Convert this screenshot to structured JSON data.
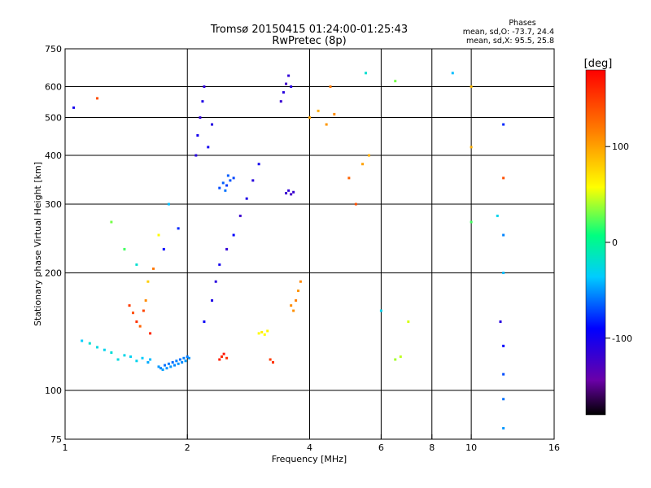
{
  "chart_data": {
    "type": "scatter",
    "title": "Tromsø 20150415 01:24:00-01:25:43",
    "subtitle": "RwPretec (8p)",
    "xlabel": "Frequency [MHz]",
    "ylabel": "Stationary phase Virtual Height [km]",
    "xscale": "log",
    "yscale": "log",
    "xlim": [
      1,
      16
    ],
    "ylim": [
      75,
      750
    ],
    "x_ticks": [
      1,
      2,
      4,
      6,
      8,
      10,
      16
    ],
    "x_tick_labels": [
      "1",
      "2",
      "4",
      "6",
      "8",
      "10",
      "16"
    ],
    "x_grid": [
      2,
      4,
      6,
      8,
      10
    ],
    "y_ticks": [
      75,
      100,
      200,
      300,
      400,
      500,
      600,
      750
    ],
    "y_tick_labels": [
      "75",
      "100",
      "200",
      "300",
      "400",
      "500",
      "600",
      "750"
    ],
    "y_grid": [
      100,
      200,
      300,
      400,
      500,
      600
    ],
    "grid": true,
    "stats": {
      "heading": "Phases",
      "line1": "mean, sd,O: -73.7, 24.4",
      "line2": "mean, sd,X:  95.5, 25.8"
    },
    "colorbar": {
      "label": "[deg]",
      "range": [
        -180,
        180
      ],
      "ticks": [
        100,
        0,
        -100
      ],
      "tick_labels": [
        "100",
        "0",
        "-100"
      ]
    },
    "series": [
      {
        "points": [
          [
            1.7,
            115,
            -50
          ],
          [
            1.72,
            114,
            -55
          ],
          [
            1.74,
            113,
            -48
          ],
          [
            1.76,
            116,
            -60
          ],
          [
            1.78,
            114,
            -52
          ],
          [
            1.8,
            117,
            -58
          ],
          [
            1.82,
            115,
            -50
          ],
          [
            1.84,
            118,
            -62
          ],
          [
            1.86,
            116,
            -54
          ],
          [
            1.88,
            119,
            -57
          ],
          [
            1.9,
            117,
            -51
          ],
          [
            1.92,
            120,
            -60
          ],
          [
            1.94,
            118,
            -53
          ],
          [
            1.96,
            121,
            -56
          ],
          [
            1.98,
            119,
            -49
          ],
          [
            2.0,
            122,
            -58
          ],
          [
            2.02,
            121,
            -52
          ],
          [
            1.6,
            118,
            -45
          ],
          [
            1.62,
            120,
            -40
          ],
          [
            1.55,
            121,
            -35
          ],
          [
            1.5,
            119,
            -30
          ],
          [
            1.45,
            122,
            -32
          ],
          [
            1.4,
            123,
            -28
          ],
          [
            1.35,
            120,
            -25
          ],
          [
            1.3,
            125,
            -22
          ],
          [
            1.25,
            127,
            -30
          ],
          [
            1.2,
            129,
            -26
          ],
          [
            1.15,
            132,
            -20
          ],
          [
            1.1,
            134,
            -35
          ],
          [
            1.44,
            165,
            150
          ],
          [
            1.47,
            158,
            140
          ],
          [
            1.5,
            150,
            155
          ],
          [
            1.53,
            146,
            130
          ],
          [
            1.56,
            160,
            145
          ],
          [
            1.58,
            170,
            110
          ],
          [
            1.62,
            140,
            160
          ],
          [
            2.4,
            120,
            165
          ],
          [
            2.43,
            122,
            160
          ],
          [
            2.46,
            124,
            170
          ],
          [
            2.5,
            121,
            155
          ],
          [
            2.2,
            150,
            -95
          ],
          [
            2.3,
            170,
            -105
          ],
          [
            2.35,
            190,
            -110
          ],
          [
            2.4,
            210,
            -100
          ],
          [
            2.5,
            230,
            -115
          ],
          [
            2.6,
            250,
            -90
          ],
          [
            2.7,
            280,
            -120
          ],
          [
            2.8,
            310,
            -105
          ],
          [
            2.9,
            345,
            -110
          ],
          [
            3.0,
            380,
            -100
          ],
          [
            2.4,
            330,
            -70
          ],
          [
            2.45,
            340,
            -65
          ],
          [
            2.5,
            335,
            -75
          ],
          [
            2.55,
            345,
            -68
          ],
          [
            2.6,
            350,
            -72
          ],
          [
            2.48,
            325,
            -60
          ],
          [
            2.52,
            355,
            -66
          ],
          [
            2.1,
            400,
            -110
          ],
          [
            2.12,
            450,
            -100
          ],
          [
            2.15,
            500,
            -115
          ],
          [
            2.18,
            550,
            -105
          ],
          [
            2.2,
            600,
            -112
          ],
          [
            2.25,
            420,
            -98
          ],
          [
            2.3,
            480,
            -108
          ],
          [
            3.5,
            320,
            -120
          ],
          [
            3.55,
            325,
            -115
          ],
          [
            3.6,
            318,
            -125
          ],
          [
            3.65,
            322,
            -118
          ],
          [
            3.4,
            550,
            -118
          ],
          [
            3.45,
            580,
            -110
          ],
          [
            3.5,
            610,
            -122
          ],
          [
            3.55,
            640,
            -115
          ],
          [
            3.6,
            600,
            -108
          ],
          [
            3.6,
            165,
            110
          ],
          [
            3.7,
            170,
            115
          ],
          [
            3.75,
            180,
            105
          ],
          [
            3.8,
            190,
            112
          ],
          [
            3.65,
            160,
            108
          ],
          [
            3.0,
            140,
            60
          ],
          [
            3.05,
            141,
            65
          ],
          [
            3.1,
            139,
            58
          ],
          [
            3.15,
            142,
            62
          ],
          [
            3.2,
            120,
            150
          ],
          [
            3.25,
            118,
            155
          ],
          [
            4.0,
            500,
            100
          ],
          [
            4.2,
            520,
            95
          ],
          [
            4.4,
            480,
            105
          ],
          [
            4.6,
            510,
            110
          ],
          [
            4.5,
            600,
            120
          ],
          [
            5.0,
            350,
            130
          ],
          [
            5.2,
            300,
            140
          ],
          [
            5.4,
            380,
            100
          ],
          [
            5.6,
            400,
            95
          ],
          [
            1.3,
            270,
            30
          ],
          [
            1.4,
            230,
            20
          ],
          [
            1.5,
            210,
            -20
          ],
          [
            1.6,
            190,
            80
          ],
          [
            1.7,
            250,
            60
          ],
          [
            1.8,
            300,
            -40
          ],
          [
            1.9,
            260,
            -80
          ],
          [
            1.75,
            230,
            -90
          ],
          [
            1.65,
            205,
            120
          ],
          [
            6.5,
            120,
            40
          ],
          [
            6.7,
            122,
            45
          ],
          [
            6.0,
            160,
            -30
          ],
          [
            7.0,
            150,
            50
          ],
          [
            12.0,
            130,
            -90
          ],
          [
            12.0,
            110,
            -70
          ],
          [
            12.0,
            95,
            -60
          ],
          [
            12.0,
            80,
            -50
          ],
          [
            12.0,
            200,
            -40
          ],
          [
            12.0,
            250,
            -55
          ],
          [
            12.0,
            350,
            140
          ],
          [
            12.0,
            480,
            -80
          ],
          [
            11.8,
            150,
            -110
          ],
          [
            11.6,
            280,
            -30
          ],
          [
            10.0,
            600,
            90
          ],
          [
            10.0,
            420,
            95
          ],
          [
            10.0,
            270,
            20
          ],
          [
            9.0,
            650,
            -40
          ],
          [
            6.5,
            620,
            30
          ],
          [
            5.5,
            650,
            -20
          ],
          [
            1.2,
            560,
            140
          ],
          [
            1.05,
            530,
            -100
          ]
        ]
      }
    ]
  }
}
